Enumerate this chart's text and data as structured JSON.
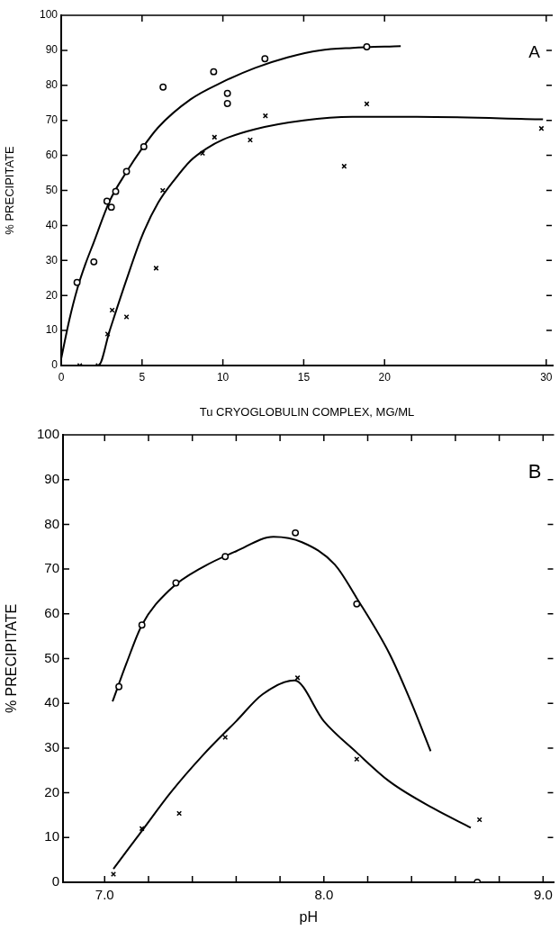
{
  "chart_data": [
    {
      "type": "scatter",
      "xlabel": "Tu CRYOGLOBULIN COMPLEX, MG/ML",
      "ylabel": "% PRECIPITATE",
      "annotations": [
        "A"
      ],
      "xlim": [
        0,
        30.4
      ],
      "xticks": [
        0,
        5,
        10,
        15,
        20,
        30
      ],
      "ylim": [
        0,
        100
      ],
      "yticks": [
        0,
        10,
        20,
        30,
        40,
        50,
        60,
        70,
        80,
        90,
        100
      ],
      "series": [
        {
          "marker": "circle",
          "color": "#000000",
          "x": [
            0.98,
            2.02,
            2.83,
            3.1,
            3.37,
            4.04,
            5.11,
            6.3,
            9.43,
            10.28,
            10.28,
            12.6,
            18.9
          ],
          "values": [
            23.7,
            29.6,
            46.9,
            45.2,
            49.7,
            55.4,
            62.5,
            79.5,
            83.9,
            77.7,
            74.8,
            87.6,
            91.0
          ]
        },
        {
          "marker": "cross",
          "color": "#000000",
          "x": [
            1.15,
            2.28,
            2.87,
            3.15,
            4.04,
            5.87,
            6.28,
            8.74,
            9.48,
            11.69,
            12.63,
            17.5,
            18.9,
            29.7
          ],
          "values": [
            0,
            0,
            9.0,
            15.8,
            13.9,
            27.8,
            50.0,
            60.6,
            65.2,
            64.4,
            71.3,
            56.9,
            74.7,
            67.7
          ]
        },
        {
          "type": "line",
          "color": "#000000",
          "x": [
            0,
            0.5,
            1,
            1.5,
            2,
            3,
            4,
            5,
            6,
            8,
            10,
            12,
            14,
            16,
            18,
            21
          ],
          "values": [
            2,
            13,
            22,
            29,
            35,
            47,
            55,
            62,
            68,
            76,
            81,
            85,
            88,
            90,
            90.7,
            91.2
          ]
        },
        {
          "type": "line",
          "color": "#000000",
          "x": [
            1.15,
            2.3,
            3,
            4,
            5,
            6,
            7,
            8,
            9,
            10,
            12,
            15,
            18,
            22,
            29.8
          ],
          "values": [
            0,
            0,
            10,
            24,
            37,
            46.5,
            53,
            58.5,
            62,
            64.5,
            67.5,
            70,
            71,
            71,
            70.3
          ]
        }
      ]
    },
    {
      "type": "scatter",
      "xlabel": "pH",
      "ylabel": "% PRECIPITATE",
      "annotations": [
        "B"
      ],
      "xlim": [
        6.81,
        9.05
      ],
      "xticks": [
        {
          "value": 7,
          "label": "7.0"
        },
        {
          "value": 7.2,
          "label": null
        },
        {
          "value": 7.4,
          "label": null
        },
        {
          "value": 7.6,
          "label": null
        },
        {
          "value": 7.8,
          "label": null
        },
        {
          "value": 8,
          "label": "8.0"
        },
        {
          "value": 8.2,
          "label": null
        },
        {
          "value": 8.4,
          "label": null
        },
        {
          "value": 8.6,
          "label": null
        },
        {
          "value": 8.8,
          "label": null
        },
        {
          "value": 9,
          "label": "9.0"
        }
      ],
      "ylim": [
        0,
        100
      ],
      "yticks": [
        0,
        10,
        20,
        30,
        40,
        50,
        60,
        70,
        80,
        90,
        100
      ],
      "series": [
        {
          "marker": "circle",
          "color": "#000000",
          "x": [
            7.065,
            7.17,
            7.325,
            7.55,
            7.87,
            8.15,
            8.7
          ],
          "values": [
            43.7,
            57.5,
            66.9,
            72.8,
            78.1,
            62.2,
            0
          ]
        },
        {
          "marker": "cross",
          "color": "#000000",
          "x": [
            7.04,
            7.17,
            7.34,
            7.55,
            7.88,
            8.15,
            8.71
          ],
          "values": [
            1.8,
            12.0,
            15.4,
            32.4,
            45.7,
            27.5,
            14.0
          ]
        },
        {
          "type": "line",
          "color": "#000000",
          "x": [
            7.036,
            7.1,
            7.17,
            7.3,
            7.45,
            7.6,
            7.77,
            7.9,
            8.05,
            8.15,
            8.3,
            8.4,
            8.487
          ],
          "values": [
            40.4,
            49,
            57.5,
            65.5,
            70.5,
            74,
            77.2,
            76,
            71,
            63.5,
            51,
            40,
            29.3
          ]
        },
        {
          "type": "line",
          "color": "#000000",
          "x": [
            7.04,
            7.17,
            7.3,
            7.45,
            7.6,
            7.72,
            7.866,
            8.0,
            8.15,
            8.3,
            8.5,
            8.67
          ],
          "values": [
            3,
            11.5,
            20,
            28.5,
            36,
            42,
            45.1,
            36,
            29,
            22.5,
            16.5,
            12.2
          ]
        }
      ]
    }
  ]
}
